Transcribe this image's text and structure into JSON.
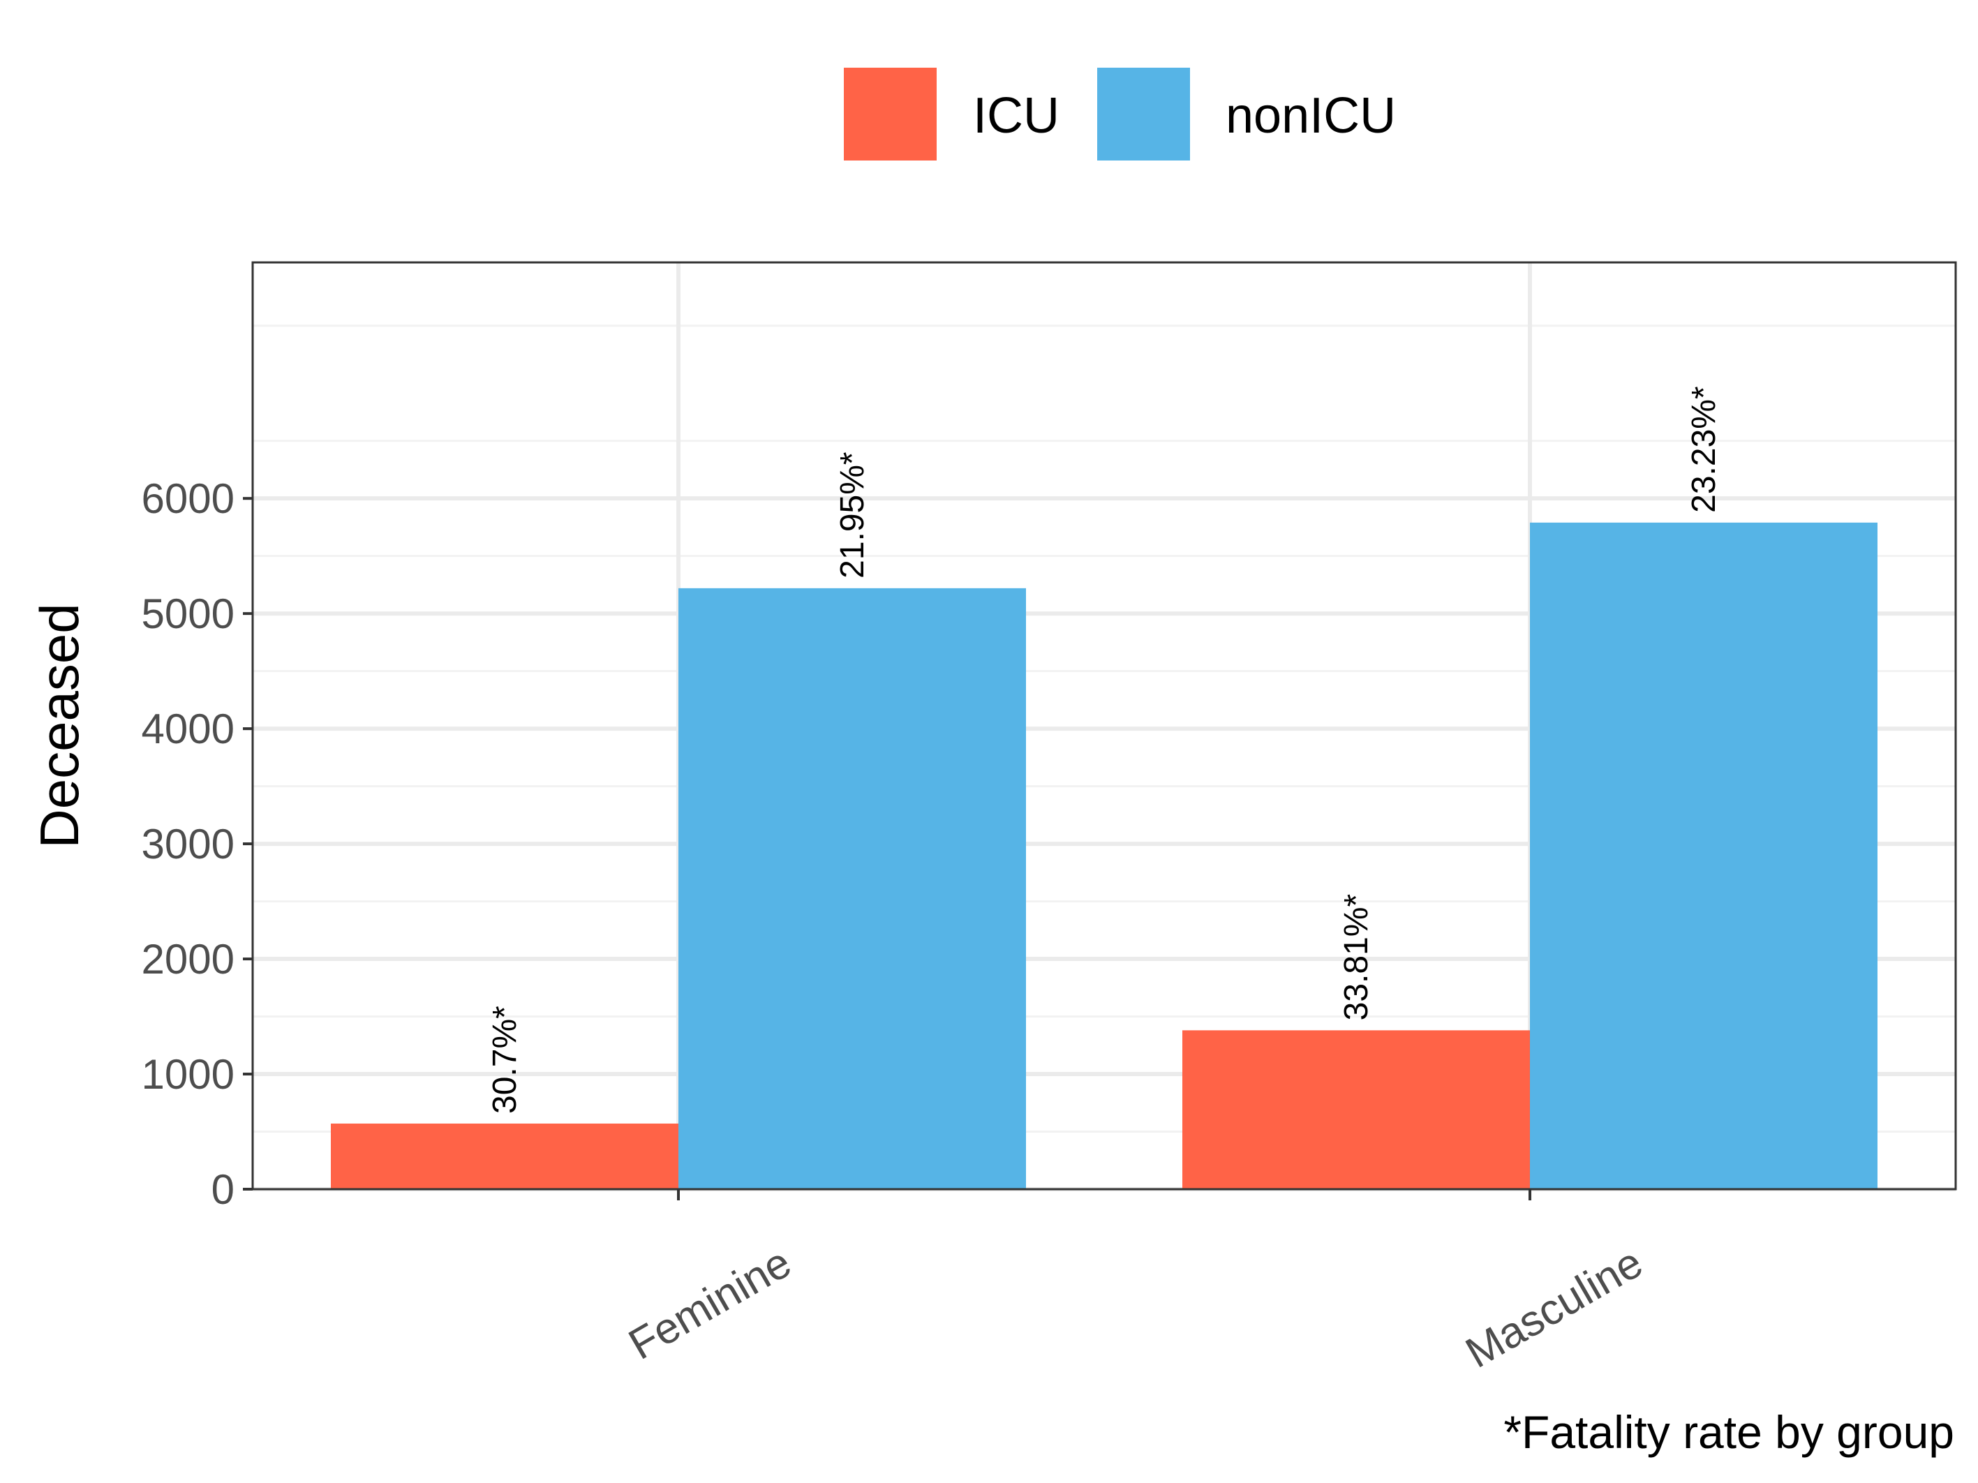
{
  "chart_data": {
    "type": "bar",
    "title": "",
    "xlabel": "",
    "ylabel": "Deceased",
    "caption": "*Fatality rate by group",
    "categories": [
      "Feminine",
      "Masculine"
    ],
    "series": [
      {
        "name": "ICU",
        "color": "#FF6347",
        "values": [
          570,
          1380
        ],
        "labels": [
          "30.7%*",
          "33.81%*"
        ]
      },
      {
        "name": "nonICU",
        "color": "#56B4E6",
        "values": [
          5220,
          5790
        ],
        "labels": [
          "21.95%*",
          "23.23%*"
        ]
      }
    ],
    "ylim": [
      0,
      8050
    ],
    "yticks": [
      0,
      1000,
      2000,
      3000,
      4000,
      5000,
      6000
    ],
    "grid": true,
    "legend_position": "top"
  }
}
